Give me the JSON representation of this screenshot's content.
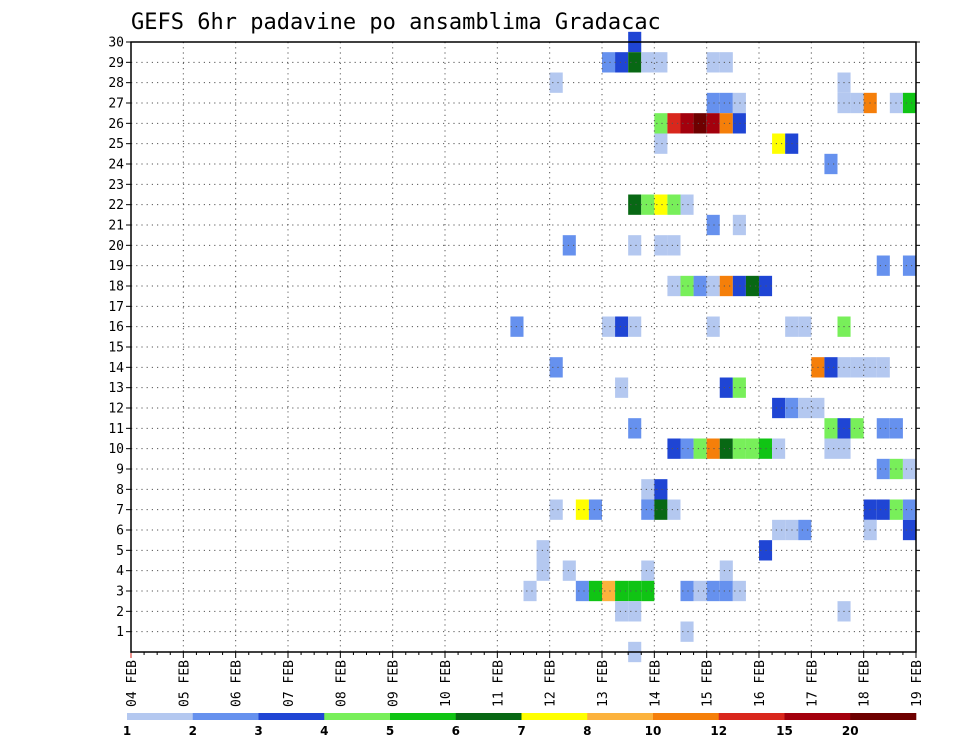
{
  "chart_data": {
    "type": "heatmap",
    "title": "GEFS 6hr padavine po ansamblima Gradacac",
    "x_ticks": [
      "04 FEB",
      "05 FEB",
      "06 FEB",
      "07 FEB",
      "08 FEB",
      "09 FEB",
      "10 FEB",
      "11 FEB",
      "12 FEB",
      "13 FEB",
      "14 FEB",
      "15 FEB",
      "16 FEB",
      "17 FEB",
      "18 FEB",
      "19 FEB"
    ],
    "x_start_day": 4,
    "x_end_day": 19,
    "y_ticks": [
      1,
      2,
      3,
      4,
      5,
      6,
      7,
      8,
      9,
      10,
      11,
      12,
      13,
      14,
      15,
      16,
      17,
      18,
      19,
      20,
      21,
      22,
      23,
      24,
      25,
      26,
      27,
      28,
      29,
      30
    ],
    "ylim": [
      0,
      30
    ],
    "grid": true,
    "legend_placement": "bottom",
    "legend": {
      "labels": [
        "1",
        "2",
        "3",
        "4",
        "5",
        "6",
        "7",
        "8",
        "10",
        "12",
        "15",
        "20"
      ],
      "colors": [
        "#b4c8f0",
        "#6691ee",
        "#1f45d4",
        "#78ef5a",
        "#10c414",
        "#086814",
        "#ffff00",
        "#fcb23c",
        "#f57f0a",
        "#d9271d",
        "#a3000d",
        "#6e0000"
      ]
    },
    "level_colors": [
      "#b4c8f0",
      "#6691ee",
      "#1f45d4",
      "#78ef5a",
      "#10c414",
      "#086814",
      "#ffff00",
      "#fcb23c",
      "#f57f0a",
      "#d9271d",
      "#a3000d",
      "#6e0000"
    ],
    "cells": [
      [
        30,
        38,
        2
      ],
      [
        29,
        36,
        1
      ],
      [
        29,
        37,
        2
      ],
      [
        29,
        38,
        5
      ],
      [
        29,
        39,
        0
      ],
      [
        29,
        40,
        0
      ],
      [
        29,
        44,
        0
      ],
      [
        29,
        45,
        0
      ],
      [
        28,
        32,
        0
      ],
      [
        28,
        54,
        0
      ],
      [
        27,
        44,
        1
      ],
      [
        27,
        45,
        1
      ],
      [
        27,
        46,
        0
      ],
      [
        27,
        54,
        0
      ],
      [
        27,
        55,
        0
      ],
      [
        27,
        56,
        8
      ],
      [
        27,
        58,
        0
      ],
      [
        27,
        59,
        4
      ],
      [
        26,
        40,
        3
      ],
      [
        26,
        41,
        9
      ],
      [
        26,
        42,
        10
      ],
      [
        26,
        43,
        11
      ],
      [
        26,
        44,
        10
      ],
      [
        26,
        45,
        8
      ],
      [
        26,
        46,
        2
      ],
      [
        25,
        40,
        0
      ],
      [
        25,
        49,
        6
      ],
      [
        25,
        50,
        2
      ],
      [
        24,
        53,
        1
      ],
      [
        22,
        38,
        5
      ],
      [
        22,
        39,
        3
      ],
      [
        22,
        40,
        6
      ],
      [
        22,
        41,
        3
      ],
      [
        22,
        42,
        0
      ],
      [
        21,
        44,
        1
      ],
      [
        21,
        46,
        0
      ],
      [
        20,
        33,
        1
      ],
      [
        20,
        38,
        0
      ],
      [
        20,
        40,
        0
      ],
      [
        20,
        41,
        0
      ],
      [
        19,
        57,
        1
      ],
      [
        19,
        59,
        1
      ],
      [
        18,
        41,
        0
      ],
      [
        18,
        42,
        3
      ],
      [
        18,
        43,
        1
      ],
      [
        18,
        44,
        0
      ],
      [
        18,
        45,
        8
      ],
      [
        18,
        46,
        2
      ],
      [
        18,
        47,
        5
      ],
      [
        18,
        48,
        2
      ],
      [
        16,
        29,
        1
      ],
      [
        16,
        36,
        0
      ],
      [
        16,
        37,
        2
      ],
      [
        16,
        38,
        0
      ],
      [
        16,
        44,
        0
      ],
      [
        16,
        50,
        0
      ],
      [
        16,
        51,
        0
      ],
      [
        16,
        54,
        3
      ],
      [
        14,
        32,
        1
      ],
      [
        14,
        52,
        8
      ],
      [
        14,
        53,
        2
      ],
      [
        14,
        54,
        0
      ],
      [
        14,
        55,
        0
      ],
      [
        14,
        56,
        0
      ],
      [
        14,
        57,
        0
      ],
      [
        13,
        37,
        0
      ],
      [
        13,
        45,
        2
      ],
      [
        13,
        46,
        3
      ],
      [
        12,
        49,
        2
      ],
      [
        12,
        50,
        1
      ],
      [
        12,
        51,
        0
      ],
      [
        12,
        52,
        0
      ],
      [
        11,
        38,
        1
      ],
      [
        11,
        53,
        3
      ],
      [
        11,
        54,
        2
      ],
      [
        11,
        55,
        3
      ],
      [
        11,
        57,
        1
      ],
      [
        11,
        58,
        1
      ],
      [
        10,
        41,
        2
      ],
      [
        10,
        42,
        1
      ],
      [
        10,
        43,
        3
      ],
      [
        10,
        44,
        8
      ],
      [
        10,
        45,
        5
      ],
      [
        10,
        46,
        3
      ],
      [
        10,
        47,
        3
      ],
      [
        10,
        48,
        4
      ],
      [
        10,
        49,
        0
      ],
      [
        10,
        53,
        0
      ],
      [
        10,
        54,
        0
      ],
      [
        9,
        57,
        1
      ],
      [
        9,
        58,
        3
      ],
      [
        9,
        59,
        0
      ],
      [
        8,
        39,
        0
      ],
      [
        8,
        40,
        2
      ],
      [
        7,
        32,
        0
      ],
      [
        7,
        34,
        6
      ],
      [
        7,
        35,
        1
      ],
      [
        7,
        39,
        1
      ],
      [
        7,
        40,
        5
      ],
      [
        7,
        41,
        0
      ],
      [
        7,
        56,
        2
      ],
      [
        7,
        57,
        2
      ],
      [
        7,
        58,
        3
      ],
      [
        7,
        59,
        1
      ],
      [
        6,
        49,
        0
      ],
      [
        6,
        50,
        0
      ],
      [
        6,
        51,
        1
      ],
      [
        6,
        56,
        0
      ],
      [
        6,
        59,
        2
      ],
      [
        6,
        60,
        2
      ],
      [
        5,
        31,
        0
      ],
      [
        5,
        48,
        2
      ],
      [
        4,
        31,
        0
      ],
      [
        4,
        33,
        0
      ],
      [
        4,
        39,
        0
      ],
      [
        4,
        45,
        0
      ],
      [
        3,
        30,
        0
      ],
      [
        3,
        34,
        1
      ],
      [
        3,
        35,
        4
      ],
      [
        3,
        36,
        7
      ],
      [
        3,
        37,
        4
      ],
      [
        3,
        38,
        4
      ],
      [
        3,
        39,
        4
      ],
      [
        3,
        42,
        1
      ],
      [
        3,
        43,
        0
      ],
      [
        3,
        44,
        1
      ],
      [
        3,
        45,
        1
      ],
      [
        3,
        46,
        0
      ],
      [
        2,
        37,
        0
      ],
      [
        2,
        38,
        0
      ],
      [
        2,
        54,
        0
      ],
      [
        1,
        42,
        0
      ],
      [
        0,
        38,
        0
      ]
    ]
  }
}
